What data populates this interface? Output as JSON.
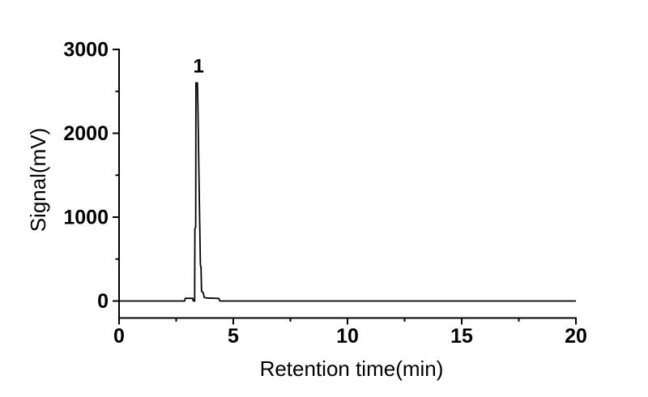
{
  "colors": {
    "line": "#000000",
    "axis": "#000000",
    "text": "#000000",
    "background": "#ffffff"
  },
  "chart_data": {
    "type": "line",
    "title": "",
    "xlabel": "Retention time(min)",
    "ylabel": "Signal(mV)",
    "xlim": [
      0,
      20
    ],
    "ylim": [
      -200,
      3000
    ],
    "grid": false,
    "legend": "none",
    "x_major_ticks": [
      0,
      5,
      10,
      15,
      20
    ],
    "x_minor_ticks": [
      2.5,
      7.5,
      12.5,
      17.5
    ],
    "y_major_ticks": [
      0,
      1000,
      2000,
      3000
    ],
    "y_minor_ticks": [
      500,
      1500,
      2500
    ],
    "annotations": [
      {
        "label": "1",
        "x": 3.43,
        "y": 2600
      }
    ],
    "series": [
      {
        "name": "signal",
        "color": "#000000",
        "points": [
          [
            0,
            0
          ],
          [
            2.87,
            0
          ],
          [
            2.9,
            32
          ],
          [
            3.22,
            32
          ],
          [
            3.25,
            0
          ],
          [
            3.31,
            0
          ],
          [
            3.32,
            860
          ],
          [
            3.355,
            880
          ],
          [
            3.365,
            2600
          ],
          [
            3.43,
            2600
          ],
          [
            3.45,
            2340
          ],
          [
            3.51,
            1260
          ],
          [
            3.56,
            430
          ],
          [
            3.59,
            400
          ],
          [
            3.61,
            115
          ],
          [
            3.68,
            100
          ],
          [
            3.73,
            42
          ],
          [
            3.85,
            36
          ],
          [
            4.37,
            30
          ],
          [
            4.42,
            0
          ],
          [
            20,
            0
          ]
        ]
      }
    ]
  }
}
